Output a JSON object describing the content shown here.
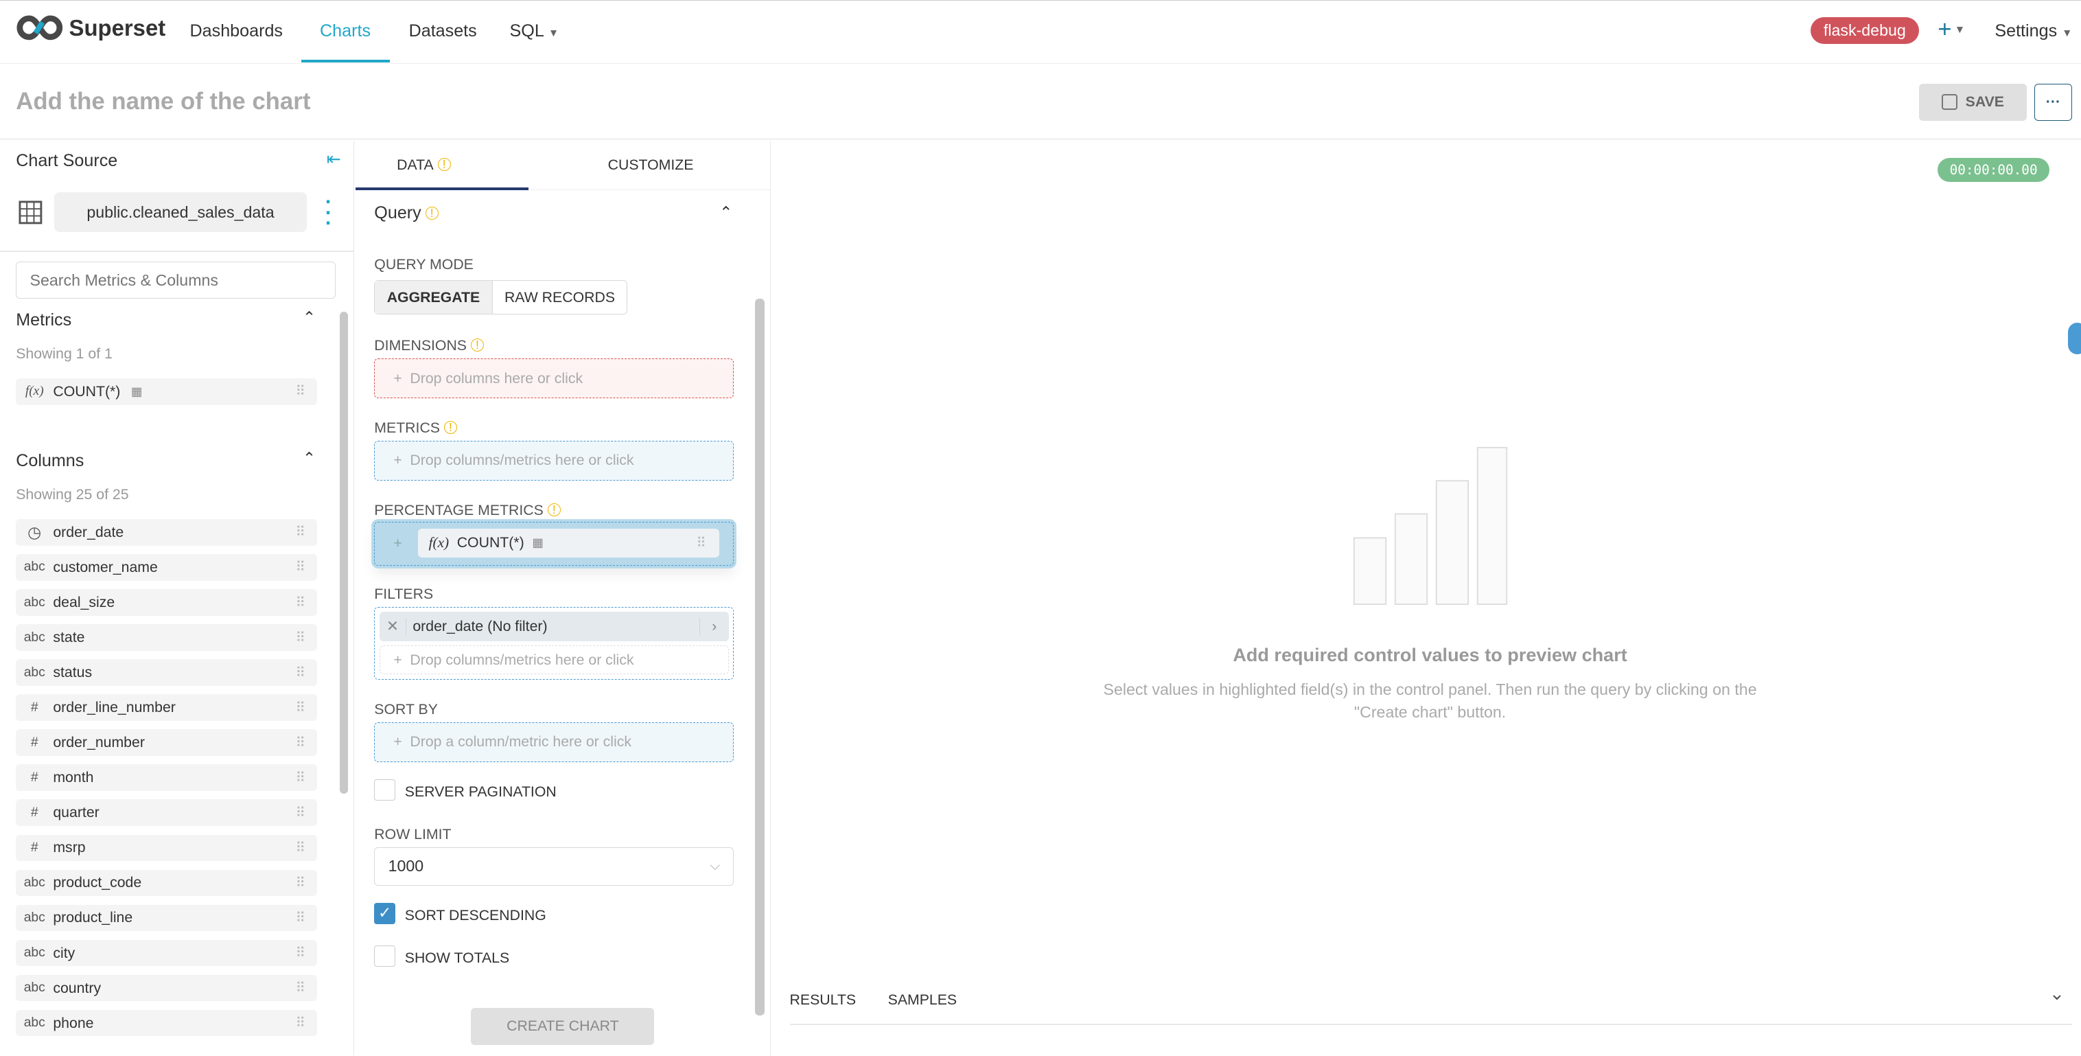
{
  "nav": {
    "brand": "Superset",
    "items": [
      "Dashboards",
      "Charts",
      "Datasets",
      "SQL"
    ],
    "active": "Charts",
    "env_badge": "flask-debug",
    "settings": "Settings"
  },
  "header": {
    "title_placeholder": "Add the name of the chart",
    "save": "SAVE"
  },
  "source": {
    "heading": "Chart Source",
    "dataset": "public.cleaned_sales_data",
    "search_placeholder": "Search Metrics & Columns"
  },
  "metrics": {
    "heading": "Metrics",
    "showing": "Showing 1 of 1",
    "items": [
      {
        "type": "f(x)",
        "name": "COUNT(*)"
      }
    ]
  },
  "columns": {
    "heading": "Columns",
    "showing": "Showing 25 of 25",
    "items": [
      {
        "type": "time",
        "name": "order_date"
      },
      {
        "type": "abc",
        "name": "customer_name"
      },
      {
        "type": "abc",
        "name": "deal_size"
      },
      {
        "type": "abc",
        "name": "state"
      },
      {
        "type": "abc",
        "name": "status"
      },
      {
        "type": "#",
        "name": "order_line_number"
      },
      {
        "type": "#",
        "name": "order_number"
      },
      {
        "type": "#",
        "name": "month"
      },
      {
        "type": "#",
        "name": "quarter"
      },
      {
        "type": "#",
        "name": "msrp"
      },
      {
        "type": "abc",
        "name": "product_code"
      },
      {
        "type": "abc",
        "name": "product_line"
      },
      {
        "type": "abc",
        "name": "city"
      },
      {
        "type": "abc",
        "name": "country"
      },
      {
        "type": "abc",
        "name": "phone"
      }
    ]
  },
  "tabs": {
    "data": "DATA",
    "customize": "CUSTOMIZE"
  },
  "query": {
    "heading": "Query",
    "mode_label": "QUERY MODE",
    "mode_aggregate": "AGGREGATE",
    "mode_raw": "RAW RECORDS",
    "dimensions": "DIMENSIONS",
    "dimensions_ph": "Drop columns here or click",
    "metrics": "METRICS",
    "metrics_ph": "Drop columns/metrics here or click",
    "pct_metrics": "PERCENTAGE METRICS",
    "dragged_fx": "f(x)",
    "dragged": "COUNT(*)",
    "filters": "FILTERS",
    "filter_item": "order_date (No filter)",
    "filters_ph": "Drop columns/metrics here or click",
    "sort_by": "SORT BY",
    "sort_ph": "Drop a column/metric here or click",
    "server_pagination": "SERVER PAGINATION",
    "row_limit": "ROW LIMIT",
    "row_limit_value": "1000",
    "sort_desc": "SORT DESCENDING",
    "show_totals": "SHOW TOTALS",
    "create": "CREATE CHART"
  },
  "preview": {
    "timer": "00:00:00.00",
    "empty_title": "Add required control values to preview chart",
    "empty_desc": "Select values in highlighted field(s) in the control panel. Then run the query by clicking on the \"Create chart\" button.",
    "results": "RESULTS",
    "samples": "SAMPLES"
  },
  "colors": {
    "accent": "#20a7c9",
    "badge": "#d0535b",
    "timer": "#7bc08f",
    "drop_border": "#4a9ad4",
    "dimension_border": "#d9534f"
  }
}
